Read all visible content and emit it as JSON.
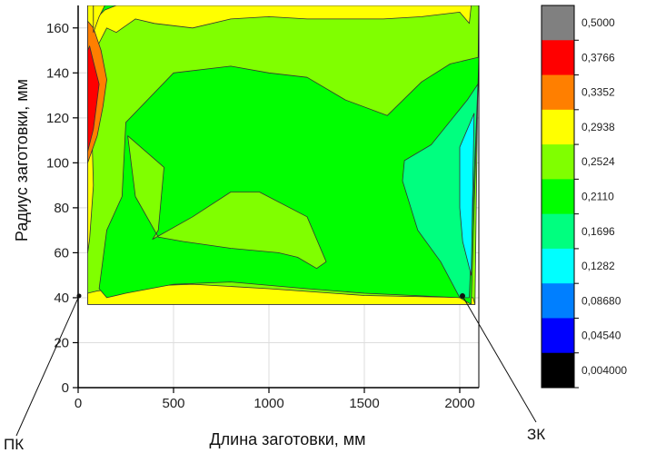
{
  "chart_data": {
    "type": "heatmap",
    "title": "",
    "xlabel": "Длина заготовки, мм",
    "ylabel": "Радиус заготовки, мм",
    "xlim": [
      0,
      2100
    ],
    "ylim": [
      0,
      170
    ],
    "xticks": [
      "0",
      "500",
      "1000",
      "1500",
      "2000"
    ],
    "yticks": [
      "0",
      "20",
      "40",
      "60",
      "80",
      "100",
      "120",
      "140",
      "160"
    ],
    "colorbar": {
      "levels": [
        "0,5000",
        "0,3766",
        "0,3352",
        "0,2938",
        "0,2524",
        "0,2110",
        "0,1696",
        "0,1282",
        "0,08680",
        "0,04540",
        "0,004000"
      ],
      "colors": [
        "#808080",
        "#ff0000",
        "#ff7f00",
        "#ffff00",
        "#80ff00",
        "#00ff00",
        "#00ff7f",
        "#00ffff",
        "#007fff",
        "#0000ff",
        "#000000"
      ]
    },
    "annotations": [
      {
        "text": "ПК",
        "points_to": [
          0,
          40
        ]
      },
      {
        "text": "ЗК",
        "points_to": [
          2000,
          40
        ]
      }
    ],
    "regions": [
      {
        "level": "0,2524",
        "polygon": [
          [
            50,
            37
          ],
          [
            2080,
            37
          ],
          [
            2100,
            170
          ],
          [
            50,
            170
          ]
        ]
      },
      {
        "level": "0,2938",
        "polygon": [
          [
            50,
            60
          ],
          [
            60,
            66
          ],
          [
            80,
            90
          ],
          [
            70,
            120
          ],
          [
            90,
            150
          ],
          [
            150,
            160
          ],
          [
            200,
            158
          ],
          [
            300,
            164
          ],
          [
            400,
            162
          ],
          [
            600,
            160
          ],
          [
            800,
            164
          ],
          [
            1000,
            165
          ],
          [
            1200,
            164
          ],
          [
            1400,
            164
          ],
          [
            1600,
            164
          ],
          [
            1800,
            165
          ],
          [
            2000,
            167
          ],
          [
            2050,
            162
          ],
          [
            2060,
            170
          ],
          [
            50,
            170
          ]
        ]
      },
      {
        "level": "0,2938",
        "polygon": [
          [
            50,
            37
          ],
          [
            2080,
            37
          ],
          [
            2070,
            40
          ],
          [
            1500,
            41
          ],
          [
            1000,
            44
          ],
          [
            600,
            46
          ],
          [
            300,
            45
          ],
          [
            100,
            43
          ],
          [
            50,
            42
          ]
        ]
      },
      {
        "level": "0,2110",
        "polygon": [
          [
            250,
            118
          ],
          [
            500,
            140
          ],
          [
            800,
            143
          ],
          [
            1000,
            140
          ],
          [
            1200,
            138
          ],
          [
            1400,
            128
          ],
          [
            1620,
            121
          ],
          [
            1800,
            136
          ],
          [
            1950,
            144
          ],
          [
            2100,
            147
          ],
          [
            2060,
            37
          ],
          [
            2000,
            40
          ],
          [
            1500,
            42
          ],
          [
            1200,
            44
          ],
          [
            800,
            47
          ],
          [
            500,
            46
          ],
          [
            250,
            42
          ],
          [
            150,
            40
          ],
          [
            110,
            44
          ],
          [
            150,
            70
          ],
          [
            230,
            85
          ]
        ]
      },
      {
        "level": "0,2524",
        "polygon": [
          [
            260,
            112
          ],
          [
            450,
            98
          ],
          [
            420,
            70
          ],
          [
            390,
            66
          ],
          [
            600,
            76
          ],
          [
            800,
            87
          ],
          [
            950,
            87
          ],
          [
            1200,
            76
          ],
          [
            1300,
            56
          ],
          [
            1250,
            53
          ],
          [
            1150,
            58
          ],
          [
            1050,
            60
          ],
          [
            800,
            62
          ],
          [
            550,
            65
          ],
          [
            420,
            67
          ],
          [
            300,
            85
          ]
        ]
      },
      {
        "level": "0,1696",
        "polygon": [
          [
            1710,
            101
          ],
          [
            1850,
            108
          ],
          [
            2040,
            128
          ],
          [
            2095,
            135
          ],
          [
            2050,
            40
          ],
          [
            2000,
            40
          ],
          [
            1900,
            56
          ],
          [
            1780,
            70
          ],
          [
            1700,
            92
          ]
        ]
      },
      {
        "level": "0,1282",
        "polygon": [
          [
            2000,
            107
          ],
          [
            2075,
            122
          ],
          [
            2060,
            50
          ],
          [
            2015,
            65
          ],
          [
            2000,
            80
          ]
        ]
      },
      {
        "level": "0,3352",
        "polygon": [
          [
            50,
            100
          ],
          [
            100,
            112
          ],
          [
            130,
            125
          ],
          [
            150,
            137
          ],
          [
            120,
            150
          ],
          [
            80,
            160
          ],
          [
            50,
            163
          ]
        ]
      },
      {
        "level": "0,3766",
        "polygon": [
          [
            50,
            105
          ],
          [
            80,
            115
          ],
          [
            95,
            125
          ],
          [
            110,
            135
          ],
          [
            80,
            145
          ],
          [
            60,
            152
          ],
          [
            50,
            150
          ]
        ]
      },
      {
        "level": "0,2110",
        "polygon": [
          [
            80,
            163
          ],
          [
            140,
            168
          ],
          [
            200,
            170
          ],
          [
            80,
            170
          ]
        ]
      },
      {
        "level": "0,2938",
        "polygon": [
          [
            80,
            158
          ],
          [
            110,
            165
          ],
          [
            140,
            170
          ],
          [
            80,
            170
          ]
        ]
      }
    ]
  }
}
